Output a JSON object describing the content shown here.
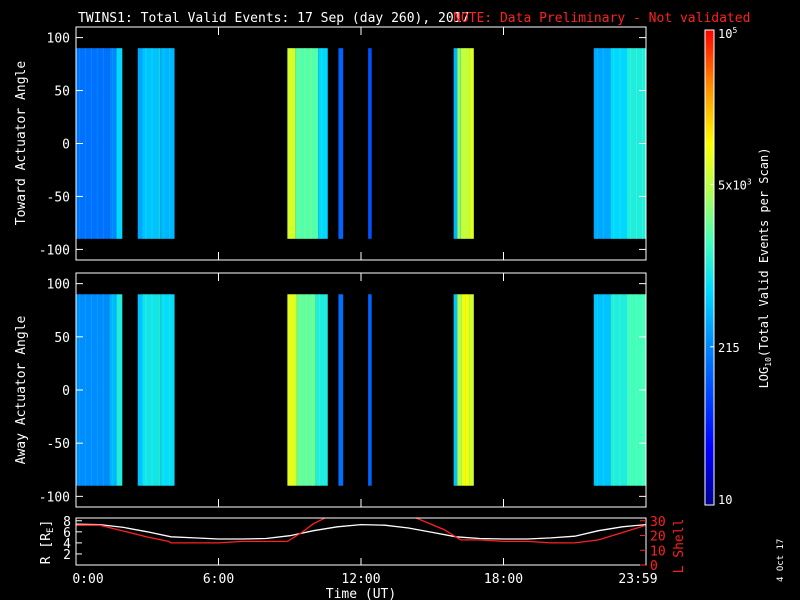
{
  "header": {
    "title": "TWINS1: Total Valid Events: 17 Sep (day 260), 2017",
    "note": "NOTE: Data Preliminary - Not validated"
  },
  "stamp": "4 Oct 17",
  "colors": {
    "background": "#000000",
    "axes": "#ffffff",
    "note": "#ff2020",
    "rshell": "#ffffff",
    "lshell": "#ff2020"
  },
  "chart_data": [
    {
      "type": "heatmap",
      "ylabel": "Toward Actuator Angle",
      "ylim": [
        -110,
        110
      ],
      "yticks": [
        "100",
        "50",
        "0",
        "-50",
        "-100"
      ],
      "yticks_values": [
        100,
        50,
        0,
        -50,
        -100
      ],
      "xlim_hours": [
        0,
        24
      ],
      "angle_range": [
        -90,
        90
      ],
      "bands": [
        {
          "start_h": 0.0,
          "end_h": 1.4,
          "level": 0.3
        },
        {
          "start_h": 1.4,
          "end_h": 1.7,
          "level": 0.33
        },
        {
          "start_h": 1.7,
          "end_h": 1.95,
          "level": 0.45
        },
        {
          "start_h": 2.6,
          "end_h": 2.8,
          "level": 0.38
        },
        {
          "start_h": 2.8,
          "end_h": 3.5,
          "level": 0.42
        },
        {
          "start_h": 3.5,
          "end_h": 3.55,
          "level": 0.5
        },
        {
          "start_h": 3.55,
          "end_h": 4.15,
          "level": 0.4
        },
        {
          "start_h": 8.9,
          "end_h": 9.25,
          "level": 0.7
        },
        {
          "start_h": 9.25,
          "end_h": 10.2,
          "level": 0.57
        },
        {
          "start_h": 10.2,
          "end_h": 10.6,
          "level": 0.45
        },
        {
          "start_h": 11.05,
          "end_h": 11.25,
          "level": 0.28
        },
        {
          "start_h": 12.3,
          "end_h": 12.45,
          "level": 0.25
        },
        {
          "start_h": 15.9,
          "end_h": 16.05,
          "level": 0.4
        },
        {
          "start_h": 16.05,
          "end_h": 16.2,
          "level": 0.62
        },
        {
          "start_h": 16.2,
          "end_h": 16.55,
          "level": 0.68
        },
        {
          "start_h": 16.55,
          "end_h": 16.75,
          "level": 0.72
        },
        {
          "start_h": 21.8,
          "end_h": 22.5,
          "level": 0.38
        },
        {
          "start_h": 22.5,
          "end_h": 23.2,
          "level": 0.45
        },
        {
          "start_h": 23.2,
          "end_h": 24.0,
          "level": 0.5
        }
      ]
    },
    {
      "type": "heatmap",
      "ylabel": "Away Actuator Angle",
      "ylim": [
        -110,
        110
      ],
      "yticks": [
        "100",
        "50",
        "0",
        "-50",
        "-100"
      ],
      "yticks_values": [
        100,
        50,
        0,
        -50,
        -100
      ],
      "xlim_hours": [
        0,
        24
      ],
      "angle_range": [
        -90,
        90
      ],
      "bands": [
        {
          "start_h": 0.0,
          "end_h": 1.4,
          "level": 0.34
        },
        {
          "start_h": 1.4,
          "end_h": 1.7,
          "level": 0.4
        },
        {
          "start_h": 1.7,
          "end_h": 1.95,
          "level": 0.5
        },
        {
          "start_h": 2.6,
          "end_h": 2.8,
          "level": 0.42
        },
        {
          "start_h": 2.8,
          "end_h": 3.5,
          "level": 0.48
        },
        {
          "start_h": 3.5,
          "end_h": 3.55,
          "level": 0.55
        },
        {
          "start_h": 3.55,
          "end_h": 4.15,
          "level": 0.46
        },
        {
          "start_h": 8.9,
          "end_h": 9.3,
          "level": 0.72
        },
        {
          "start_h": 9.3,
          "end_h": 10.1,
          "level": 0.58
        },
        {
          "start_h": 10.1,
          "end_h": 10.6,
          "level": 0.5
        },
        {
          "start_h": 11.05,
          "end_h": 11.25,
          "level": 0.3
        },
        {
          "start_h": 12.3,
          "end_h": 12.45,
          "level": 0.28
        },
        {
          "start_h": 15.9,
          "end_h": 16.05,
          "level": 0.42
        },
        {
          "start_h": 16.05,
          "end_h": 16.25,
          "level": 0.66
        },
        {
          "start_h": 16.25,
          "end_h": 16.55,
          "level": 0.74
        },
        {
          "start_h": 16.55,
          "end_h": 16.75,
          "level": 0.7
        },
        {
          "start_h": 21.8,
          "end_h": 22.5,
          "level": 0.42
        },
        {
          "start_h": 22.5,
          "end_h": 23.2,
          "level": 0.5
        },
        {
          "start_h": 23.2,
          "end_h": 24.0,
          "level": 0.55
        }
      ]
    },
    {
      "type": "line",
      "ylabel": "R [R",
      "ylabel_sub": "E",
      "ylabel_end": "]",
      "y2label": "L Shell",
      "ylim": [
        0,
        8.5
      ],
      "yticks": [
        "8",
        "6",
        "4",
        "2"
      ],
      "yticks_values": [
        8,
        6,
        4,
        2
      ],
      "y2lim": [
        0,
        31.875
      ],
      "y2ticks": [
        "30",
        "20",
        "10",
        "0"
      ],
      "y2ticks_values": [
        30,
        20,
        10,
        0
      ],
      "xlabel": "Time (UT)",
      "xticks": [
        "0:00",
        "6:00",
        "12:00",
        "18:00",
        "23:59"
      ],
      "xticks_hours": [
        0,
        6,
        12,
        18,
        24
      ],
      "series": [
        {
          "name": "R",
          "axis": "left",
          "x": [
            0,
            1,
            2,
            3,
            4,
            5,
            6,
            7,
            8,
            9,
            10,
            11,
            12,
            13,
            14,
            15,
            16,
            17,
            18,
            19,
            20,
            21,
            22,
            23,
            24
          ],
          "y": [
            7.4,
            7.3,
            6.8,
            6.0,
            5.1,
            4.9,
            4.7,
            4.7,
            4.8,
            5.3,
            6.2,
            6.9,
            7.3,
            7.2,
            6.7,
            5.9,
            5.1,
            4.8,
            4.7,
            4.7,
            4.9,
            5.2,
            6.2,
            6.9,
            7.3
          ]
        },
        {
          "name": "L Shell",
          "axis": "right",
          "x": [
            0,
            1,
            2,
            3,
            3.9,
            4.0,
            5,
            6,
            7,
            8,
            8.9,
            9.5,
            10.0,
            10.5,
            14.3,
            15.5,
            16.2,
            17,
            18,
            19,
            20,
            21,
            22,
            23,
            24
          ],
          "y": [
            27,
            27,
            23,
            19,
            16,
            15,
            15,
            15,
            16,
            16,
            16,
            22,
            28,
            32,
            32,
            24,
            17,
            17,
            16,
            16,
            15,
            15,
            17,
            22,
            27
          ]
        }
      ]
    }
  ],
  "colorbar": {
    "label": "LOG",
    "label_sub": "10",
    "label_end": "(Total Valid Events per Scan)",
    "ticks": [
      {
        "text": "10",
        "value": 10
      },
      {
        "text": "215",
        "value": 215
      },
      {
        "text": "5x10",
        "sup": "3",
        "value": 5000
      },
      {
        "text": "10",
        "sup": "5",
        "value": 100000
      }
    ],
    "range": [
      10,
      100000
    ],
    "scale": "log"
  }
}
